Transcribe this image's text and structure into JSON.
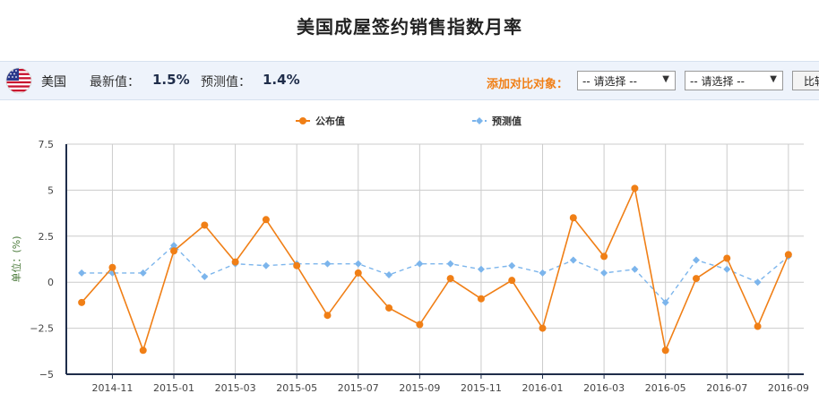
{
  "page": {
    "title": "美国成屋签约销售指数月率"
  },
  "info_bar": {
    "country": "美国",
    "latest_label": "最新值：",
    "latest_value": "1.5%",
    "forecast_label": "预测值：",
    "forecast_value": "1.4%",
    "compare_label": "添加对比对象：",
    "select1_value": "-- 请选择 --",
    "select2_value": "-- 请选择 --",
    "compare_button": "比较"
  },
  "colors": {
    "published": "#f07f16",
    "forecast": "#7cb5ec",
    "axis": "#1f2d4a",
    "grid": "#cccccc"
  },
  "chart_data": {
    "type": "line",
    "ylabel": "单位：(%)",
    "ylim": [
      -5,
      7.5
    ],
    "yticks": [
      "7.5",
      "5",
      "2.5",
      "0",
      "−2.5",
      "−5"
    ],
    "ytick_values": [
      7.5,
      5,
      2.5,
      0,
      -2.5,
      -5
    ],
    "x": [
      "2014-10",
      "2014-11",
      "2014-12",
      "2015-01",
      "2015-02",
      "2015-03",
      "2015-04",
      "2015-05",
      "2015-06",
      "2015-07",
      "2015-08",
      "2015-09",
      "2015-10",
      "2015-11",
      "2015-12",
      "2016-01",
      "2016-02",
      "2016-03",
      "2016-04",
      "2016-05",
      "2016-06",
      "2016-07",
      "2016-08",
      "2016-09"
    ],
    "xtick_labels": [
      "2014-11",
      "2015-01",
      "2015-03",
      "2015-05",
      "2015-07",
      "2015-09",
      "2015-11",
      "2016-01",
      "2016-03",
      "2016-05",
      "2016-07",
      "2016-09"
    ],
    "grid": true,
    "legend_position": "top-center",
    "series": [
      {
        "name": "公布值",
        "style": "solid",
        "values": [
          -1.1,
          0.8,
          -3.7,
          1.7,
          3.1,
          1.1,
          3.4,
          0.9,
          -1.8,
          0.5,
          -1.4,
          -2.3,
          0.2,
          -0.9,
          0.1,
          -2.5,
          3.5,
          1.4,
          5.1,
          -3.7,
          0.2,
          1.3,
          -2.4,
          1.5
        ]
      },
      {
        "name": "预测值",
        "style": "dashed",
        "values": [
          0.5,
          0.5,
          0.5,
          2.0,
          0.3,
          1.0,
          0.9,
          1.0,
          1.0,
          1.0,
          0.4,
          1.0,
          1.0,
          0.7,
          0.9,
          0.5,
          1.2,
          0.5,
          0.7,
          -1.1,
          1.2,
          0.7,
          0.0,
          1.4
        ]
      }
    ]
  }
}
